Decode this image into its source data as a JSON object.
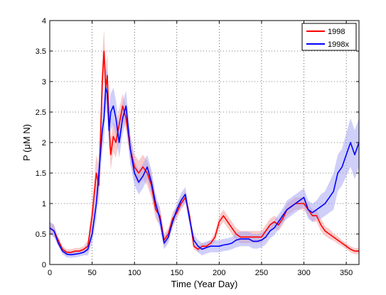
{
  "chart_data": {
    "type": "line",
    "title": "",
    "xlabel": "Time (Year Day)",
    "ylabel": "P (μM N)",
    "xlim": [
      0,
      365
    ],
    "ylim": [
      0,
      4
    ],
    "xticks": [
      0,
      50,
      100,
      150,
      200,
      250,
      300,
      350
    ],
    "yticks": [
      0,
      0.5,
      1,
      1.5,
      2,
      2.5,
      3,
      3.5,
      4
    ],
    "xtick_labels": [
      "0",
      "50",
      "100",
      "150",
      "200",
      "250",
      "300",
      "350"
    ],
    "ytick_labels": [
      "0",
      "0.5",
      "1",
      "1.5",
      "2",
      "2.5",
      "3",
      "3.5",
      "4"
    ],
    "grid": true,
    "legend_position": "top-right",
    "series": [
      {
        "name": "1998",
        "color": "#ff0000",
        "band_color": "#f4a0a0",
        "x": [
          0,
          5,
          10,
          15,
          20,
          25,
          30,
          35,
          40,
          45,
          50,
          55,
          58,
          62,
          64,
          66,
          68,
          70,
          72,
          75,
          78,
          82,
          86,
          90,
          95,
          100,
          105,
          110,
          115,
          120,
          125,
          130,
          135,
          140,
          145,
          150,
          155,
          160,
          165,
          170,
          175,
          180,
          185,
          190,
          195,
          200,
          205,
          210,
          215,
          220,
          225,
          230,
          235,
          240,
          245,
          250,
          255,
          260,
          265,
          270,
          275,
          280,
          285,
          290,
          295,
          300,
          305,
          310,
          315,
          320,
          325,
          330,
          335,
          340,
          345,
          350,
          355,
          360,
          365
        ],
        "values": [
          0.6,
          0.55,
          0.4,
          0.25,
          0.2,
          0.2,
          0.22,
          0.22,
          0.25,
          0.3,
          0.8,
          1.5,
          1.3,
          3.0,
          3.5,
          2.9,
          3.1,
          2.3,
          1.8,
          2.1,
          2.0,
          2.3,
          2.6,
          2.4,
          1.9,
          1.6,
          1.5,
          1.6,
          1.5,
          1.3,
          0.9,
          0.8,
          0.4,
          0.5,
          0.75,
          0.85,
          1.0,
          1.1,
          0.8,
          0.3,
          0.25,
          0.3,
          0.3,
          0.35,
          0.45,
          0.7,
          0.8,
          0.7,
          0.6,
          0.5,
          0.45,
          0.45,
          0.45,
          0.45,
          0.45,
          0.45,
          0.55,
          0.65,
          0.7,
          0.65,
          0.75,
          0.9,
          0.95,
          1.0,
          1.0,
          1.0,
          0.9,
          0.8,
          0.8,
          0.65,
          0.55,
          0.5,
          0.45,
          0.4,
          0.35,
          0.3,
          0.25,
          0.22,
          0.22
        ],
        "band_halfwidth": [
          0.1,
          0.1,
          0.05,
          0.05,
          0.05,
          0.05,
          0.05,
          0.05,
          0.05,
          0.1,
          0.2,
          0.3,
          0.3,
          0.45,
          0.35,
          0.35,
          0.35,
          0.3,
          0.25,
          0.25,
          0.25,
          0.25,
          0.2,
          0.2,
          0.2,
          0.2,
          0.2,
          0.2,
          0.2,
          0.2,
          0.15,
          0.15,
          0.1,
          0.1,
          0.1,
          0.1,
          0.1,
          0.1,
          0.1,
          0.05,
          0.05,
          0.05,
          0.05,
          0.05,
          0.08,
          0.1,
          0.1,
          0.1,
          0.1,
          0.1,
          0.1,
          0.1,
          0.1,
          0.1,
          0.1,
          0.1,
          0.1,
          0.1,
          0.1,
          0.1,
          0.1,
          0.1,
          0.1,
          0.1,
          0.1,
          0.1,
          0.1,
          0.1,
          0.1,
          0.1,
          0.08,
          0.08,
          0.06,
          0.06,
          0.05,
          0.05,
          0.05,
          0.05,
          0.05
        ]
      },
      {
        "name": "1998x",
        "color": "#0000ff",
        "band_color": "#a8a8f4",
        "x": [
          0,
          5,
          10,
          15,
          20,
          25,
          30,
          35,
          40,
          45,
          50,
          55,
          58,
          62,
          64,
          66,
          68,
          70,
          72,
          75,
          78,
          82,
          86,
          90,
          95,
          100,
          105,
          110,
          115,
          120,
          125,
          130,
          135,
          140,
          145,
          150,
          155,
          160,
          165,
          170,
          175,
          180,
          185,
          190,
          195,
          200,
          205,
          210,
          215,
          220,
          225,
          230,
          235,
          240,
          245,
          250,
          255,
          260,
          265,
          270,
          275,
          280,
          285,
          290,
          295,
          300,
          305,
          310,
          315,
          320,
          325,
          330,
          335,
          340,
          345,
          350,
          355,
          360,
          365
        ],
        "values": [
          0.6,
          0.55,
          0.35,
          0.22,
          0.17,
          0.16,
          0.17,
          0.18,
          0.2,
          0.25,
          0.5,
          1.0,
          1.5,
          2.2,
          2.4,
          2.9,
          2.8,
          2.2,
          2.5,
          2.6,
          2.4,
          2.0,
          2.4,
          2.6,
          1.9,
          1.5,
          1.35,
          1.45,
          1.6,
          1.35,
          1.0,
          0.75,
          0.35,
          0.45,
          0.7,
          0.9,
          1.05,
          1.15,
          0.75,
          0.4,
          0.3,
          0.25,
          0.28,
          0.3,
          0.3,
          0.3,
          0.32,
          0.33,
          0.35,
          0.4,
          0.42,
          0.42,
          0.42,
          0.38,
          0.38,
          0.4,
          0.45,
          0.55,
          0.6,
          0.7,
          0.8,
          0.9,
          0.95,
          1.0,
          1.05,
          1.1,
          0.9,
          0.85,
          0.9,
          0.95,
          1.0,
          1.1,
          1.2,
          1.5,
          1.6,
          1.8,
          2.0,
          1.8,
          2.0
        ],
        "band_halfwidth": [
          0.1,
          0.1,
          0.05,
          0.05,
          0.05,
          0.05,
          0.05,
          0.05,
          0.05,
          0.1,
          0.15,
          0.25,
          0.3,
          0.35,
          0.35,
          0.35,
          0.35,
          0.35,
          0.3,
          0.3,
          0.3,
          0.25,
          0.25,
          0.25,
          0.25,
          0.2,
          0.2,
          0.2,
          0.2,
          0.2,
          0.15,
          0.15,
          0.1,
          0.1,
          0.1,
          0.1,
          0.12,
          0.12,
          0.1,
          0.1,
          0.1,
          0.1,
          0.1,
          0.1,
          0.1,
          0.1,
          0.1,
          0.1,
          0.1,
          0.12,
          0.12,
          0.12,
          0.12,
          0.12,
          0.12,
          0.12,
          0.12,
          0.12,
          0.12,
          0.12,
          0.12,
          0.15,
          0.15,
          0.15,
          0.15,
          0.15,
          0.15,
          0.15,
          0.15,
          0.2,
          0.2,
          0.25,
          0.3,
          0.3,
          0.3,
          0.35,
          0.4,
          0.4,
          0.4
        ]
      }
    ]
  }
}
